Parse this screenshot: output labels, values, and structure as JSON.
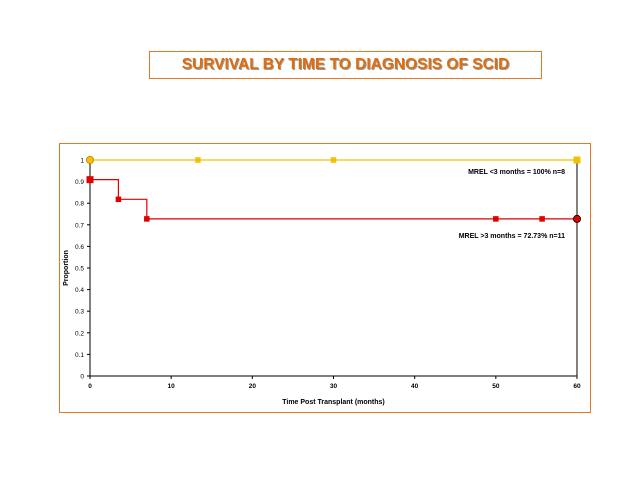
{
  "title": "SURVIVAL BY TIME TO DIAGNOSIS OF SCID",
  "chart_data": {
    "type": "line",
    "step": true,
    "xlabel": "Time Post Transplant (months)",
    "ylabel": "Proportion",
    "xlim": [
      0,
      60
    ],
    "ylim": [
      0,
      1
    ],
    "xticks": [
      "0",
      "10",
      "20",
      "30",
      "40",
      "50",
      "60"
    ],
    "yticks": [
      "0",
      "0.1",
      "0.2",
      "0.3",
      "0.4",
      "0.5",
      "0.6",
      "0.7",
      "0.8",
      "0.9",
      "1"
    ],
    "grid": false,
    "series": [
      {
        "label": "MREL <3 months = 100% n=8",
        "color": "#f2c200",
        "x": [
          0,
          13.3,
          30,
          60
        ],
        "y": [
          1,
          1,
          1,
          1
        ]
      },
      {
        "label": "MREL >3 months = 72.73% n=11",
        "color": "#e00000",
        "x": [
          0,
          3.5,
          7,
          50,
          55.7,
          60
        ],
        "y": [
          0.909,
          0.818,
          0.7273,
          0.7273,
          0.7273,
          0.7273
        ]
      }
    ]
  }
}
